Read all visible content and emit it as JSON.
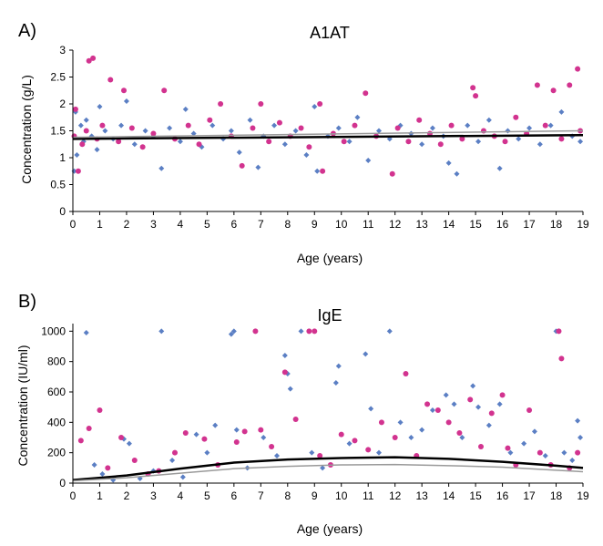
{
  "colors": {
    "blue": "#5b7fc4",
    "magenta": "#d2338f",
    "fit_dark": "#000000",
    "fit_gray": "#9a9a9a",
    "axis": "#000000"
  },
  "chart_data": [
    {
      "panel": "A)",
      "type": "scatter",
      "title": "A1AT",
      "xlabel": "Age (years)",
      "ylabel": "Concentration (g/L)",
      "xlim": [
        0,
        19
      ],
      "ylim": [
        0,
        3
      ],
      "xticks": [
        "0",
        "1",
        "2",
        "3",
        "4",
        "5",
        "6",
        "7",
        "8",
        "9",
        "10",
        "11",
        "12",
        "13",
        "14",
        "15",
        "16",
        "17",
        "18",
        "19"
      ],
      "yticks": [
        "0",
        "0.5",
        "1",
        "1.5",
        "2",
        "2.5",
        "3"
      ],
      "ytick_values": [
        0,
        0.5,
        1,
        1.5,
        2,
        2.5,
        3
      ],
      "grid": false,
      "series": [
        {
          "name": "blue",
          "color": "#5b7fc4",
          "points": [
            [
              0.05,
              0.75
            ],
            [
              0.1,
              1.85
            ],
            [
              0.15,
              1.05
            ],
            [
              0.3,
              1.6
            ],
            [
              0.4,
              1.3
            ],
            [
              0.5,
              1.7
            ],
            [
              0.7,
              1.4
            ],
            [
              0.9,
              1.15
            ],
            [
              1.0,
              1.95
            ],
            [
              1.2,
              1.5
            ],
            [
              1.5,
              1.35
            ],
            [
              1.8,
              1.6
            ],
            [
              2.0,
              2.05
            ],
            [
              2.3,
              1.25
            ],
            [
              2.7,
              1.5
            ],
            [
              3.0,
              1.4
            ],
            [
              3.3,
              0.8
            ],
            [
              3.6,
              1.55
            ],
            [
              4.0,
              1.3
            ],
            [
              4.2,
              1.9
            ],
            [
              4.5,
              1.45
            ],
            [
              4.8,
              1.2
            ],
            [
              5.2,
              1.6
            ],
            [
              5.6,
              1.35
            ],
            [
              5.9,
              1.5
            ],
            [
              6.2,
              1.1
            ],
            [
              6.6,
              1.7
            ],
            [
              6.9,
              0.82
            ],
            [
              7.1,
              1.4
            ],
            [
              7.5,
              1.6
            ],
            [
              7.9,
              1.25
            ],
            [
              8.3,
              1.5
            ],
            [
              8.7,
              1.05
            ],
            [
              9.0,
              1.95
            ],
            [
              9.1,
              0.75
            ],
            [
              9.5,
              1.4
            ],
            [
              9.9,
              1.55
            ],
            [
              10.3,
              1.3
            ],
            [
              10.6,
              1.75
            ],
            [
              11.0,
              0.95
            ],
            [
              11.4,
              1.5
            ],
            [
              11.8,
              1.35
            ],
            [
              12.2,
              1.6
            ],
            [
              12.6,
              1.45
            ],
            [
              13.0,
              1.25
            ],
            [
              13.4,
              1.55
            ],
            [
              13.8,
              1.4
            ],
            [
              14.0,
              0.9
            ],
            [
              14.3,
              0.7
            ],
            [
              14.7,
              1.6
            ],
            [
              15.1,
              1.3
            ],
            [
              15.5,
              1.7
            ],
            [
              15.9,
              0.8
            ],
            [
              16.2,
              1.5
            ],
            [
              16.6,
              1.35
            ],
            [
              17.0,
              1.55
            ],
            [
              17.4,
              1.25
            ],
            [
              17.8,
              1.6
            ],
            [
              18.2,
              1.85
            ],
            [
              18.6,
              1.4
            ],
            [
              18.9,
              1.3
            ]
          ]
        },
        {
          "name": "magenta",
          "color": "#d2338f",
          "points": [
            [
              0.05,
              1.4
            ],
            [
              0.1,
              1.9
            ],
            [
              0.2,
              0.75
            ],
            [
              0.35,
              1.25
            ],
            [
              0.5,
              1.5
            ],
            [
              0.6,
              2.8
            ],
            [
              0.75,
              2.85
            ],
            [
              0.9,
              1.35
            ],
            [
              1.1,
              1.6
            ],
            [
              1.4,
              2.45
            ],
            [
              1.7,
              1.3
            ],
            [
              1.9,
              2.25
            ],
            [
              2.2,
              1.55
            ],
            [
              2.6,
              1.2
            ],
            [
              3.0,
              1.45
            ],
            [
              3.4,
              2.25
            ],
            [
              3.8,
              1.35
            ],
            [
              4.3,
              1.6
            ],
            [
              4.7,
              1.25
            ],
            [
              5.1,
              1.7
            ],
            [
              5.5,
              2.0
            ],
            [
              5.9,
              1.4
            ],
            [
              6.3,
              0.85
            ],
            [
              6.7,
              1.55
            ],
            [
              7.0,
              2.0
            ],
            [
              7.3,
              1.3
            ],
            [
              7.7,
              1.65
            ],
            [
              8.1,
              1.4
            ],
            [
              8.5,
              1.55
            ],
            [
              8.8,
              1.2
            ],
            [
              9.2,
              2.0
            ],
            [
              9.3,
              0.75
            ],
            [
              9.7,
              1.45
            ],
            [
              10.1,
              1.3
            ],
            [
              10.5,
              1.6
            ],
            [
              10.9,
              2.2
            ],
            [
              11.3,
              1.4
            ],
            [
              11.9,
              0.7
            ],
            [
              12.1,
              1.55
            ],
            [
              12.5,
              1.3
            ],
            [
              12.9,
              1.7
            ],
            [
              13.3,
              1.45
            ],
            [
              13.7,
              1.25
            ],
            [
              14.1,
              1.6
            ],
            [
              14.5,
              1.35
            ],
            [
              14.9,
              2.3
            ],
            [
              15.0,
              2.15
            ],
            [
              15.3,
              1.5
            ],
            [
              15.7,
              1.4
            ],
            [
              16.1,
              1.3
            ],
            [
              16.5,
              1.75
            ],
            [
              16.9,
              1.45
            ],
            [
              17.3,
              2.35
            ],
            [
              17.6,
              1.6
            ],
            [
              17.9,
              2.25
            ],
            [
              18.2,
              1.35
            ],
            [
              18.5,
              2.35
            ],
            [
              18.8,
              2.65
            ],
            [
              18.9,
              1.5
            ]
          ]
        }
      ],
      "fits": [
        {
          "name": "fit-dark",
          "color": "#000000",
          "points": [
            [
              0,
              1.35
            ],
            [
              19,
              1.42
            ]
          ]
        },
        {
          "name": "fit-gray",
          "color": "#9a9a9a",
          "points": [
            [
              0,
              1.38
            ],
            [
              19,
              1.5
            ]
          ]
        }
      ]
    },
    {
      "panel": "B)",
      "type": "scatter",
      "title": "IgE",
      "xlabel": "Age (years)",
      "ylabel": "Concentration (IU/ml)",
      "xlim": [
        0,
        19
      ],
      "ylim": [
        0,
        1050
      ],
      "xticks": [
        "0",
        "1",
        "2",
        "3",
        "4",
        "5",
        "6",
        "7",
        "8",
        "9",
        "10",
        "11",
        "12",
        "13",
        "14",
        "15",
        "16",
        "17",
        "18",
        "19"
      ],
      "yticks": [
        "0",
        "200",
        "400",
        "600",
        "800",
        "1000"
      ],
      "ytick_values": [
        0,
        200,
        400,
        600,
        800,
        1000
      ],
      "grid": false,
      "series": [
        {
          "name": "blue",
          "color": "#5b7fc4",
          "points": [
            [
              0.5,
              990
            ],
            [
              0.8,
              120
            ],
            [
              1.1,
              60
            ],
            [
              1.5,
              20
            ],
            [
              1.9,
              290
            ],
            [
              2.1,
              260
            ],
            [
              2.5,
              30
            ],
            [
              3.0,
              80
            ],
            [
              3.3,
              1000
            ],
            [
              3.7,
              150
            ],
            [
              4.1,
              40
            ],
            [
              4.6,
              320
            ],
            [
              5.0,
              200
            ],
            [
              5.3,
              380
            ],
            [
              5.9,
              980
            ],
            [
              6.0,
              1000
            ],
            [
              6.1,
              350
            ],
            [
              6.5,
              100
            ],
            [
              7.1,
              300
            ],
            [
              7.6,
              180
            ],
            [
              7.9,
              840
            ],
            [
              8.0,
              720
            ],
            [
              8.1,
              620
            ],
            [
              8.5,
              1000
            ],
            [
              8.9,
              200
            ],
            [
              9.3,
              100
            ],
            [
              9.8,
              660
            ],
            [
              9.9,
              770
            ],
            [
              10.3,
              260
            ],
            [
              10.9,
              850
            ],
            [
              11.1,
              490
            ],
            [
              11.4,
              200
            ],
            [
              11.8,
              1000
            ],
            [
              12.2,
              400
            ],
            [
              12.6,
              300
            ],
            [
              13.0,
              350
            ],
            [
              13.4,
              480
            ],
            [
              13.9,
              580
            ],
            [
              14.2,
              520
            ],
            [
              14.5,
              300
            ],
            [
              14.9,
              640
            ],
            [
              15.1,
              500
            ],
            [
              15.5,
              380
            ],
            [
              15.9,
              520
            ],
            [
              16.3,
              200
            ],
            [
              16.8,
              260
            ],
            [
              17.2,
              340
            ],
            [
              17.6,
              180
            ],
            [
              18.0,
              1000
            ],
            [
              18.3,
              200
            ],
            [
              18.6,
              150
            ],
            [
              18.8,
              410
            ],
            [
              18.9,
              300
            ]
          ]
        },
        {
          "name": "magenta",
          "color": "#d2338f",
          "points": [
            [
              0.3,
              280
            ],
            [
              0.6,
              360
            ],
            [
              1.0,
              480
            ],
            [
              1.3,
              100
            ],
            [
              1.8,
              300
            ],
            [
              2.3,
              150
            ],
            [
              2.8,
              60
            ],
            [
              3.2,
              80
            ],
            [
              3.8,
              200
            ],
            [
              4.2,
              330
            ],
            [
              4.9,
              290
            ],
            [
              5.4,
              120
            ],
            [
              6.1,
              270
            ],
            [
              6.4,
              340
            ],
            [
              6.8,
              1000
            ],
            [
              7.0,
              350
            ],
            [
              7.4,
              240
            ],
            [
              7.9,
              730
            ],
            [
              8.3,
              420
            ],
            [
              8.8,
              1000
            ],
            [
              9.0,
              1000
            ],
            [
              9.2,
              180
            ],
            [
              9.6,
              120
            ],
            [
              10.0,
              320
            ],
            [
              10.5,
              280
            ],
            [
              11.0,
              220
            ],
            [
              11.5,
              400
            ],
            [
              12.0,
              300
            ],
            [
              12.4,
              720
            ],
            [
              12.8,
              180
            ],
            [
              13.2,
              520
            ],
            [
              13.6,
              480
            ],
            [
              14.0,
              400
            ],
            [
              14.4,
              330
            ],
            [
              14.8,
              550
            ],
            [
              15.2,
              240
            ],
            [
              15.6,
              460
            ],
            [
              16.0,
              580
            ],
            [
              16.2,
              230
            ],
            [
              16.5,
              120
            ],
            [
              17.0,
              480
            ],
            [
              17.4,
              200
            ],
            [
              17.8,
              120
            ],
            [
              18.1,
              1000
            ],
            [
              18.2,
              820
            ],
            [
              18.5,
              100
            ],
            [
              18.8,
              200
            ]
          ]
        }
      ],
      "fits": [
        {
          "name": "fit-dark",
          "color": "#000000",
          "points": [
            [
              0,
              20
            ],
            [
              2,
              50
            ],
            [
              4,
              95
            ],
            [
              6,
              135
            ],
            [
              8,
              155
            ],
            [
              10,
              165
            ],
            [
              12,
              170
            ],
            [
              14,
              160
            ],
            [
              16,
              140
            ],
            [
              18,
              115
            ],
            [
              19,
              100
            ]
          ]
        },
        {
          "name": "fit-gray",
          "color": "#9a9a9a",
          "points": [
            [
              0,
              15
            ],
            [
              2,
              35
            ],
            [
              4,
              65
            ],
            [
              6,
              95
            ],
            [
              8,
              110
            ],
            [
              10,
              120
            ],
            [
              12,
              122
            ],
            [
              14,
              115
            ],
            [
              16,
              105
            ],
            [
              18,
              85
            ],
            [
              19,
              75
            ]
          ]
        }
      ]
    }
  ]
}
